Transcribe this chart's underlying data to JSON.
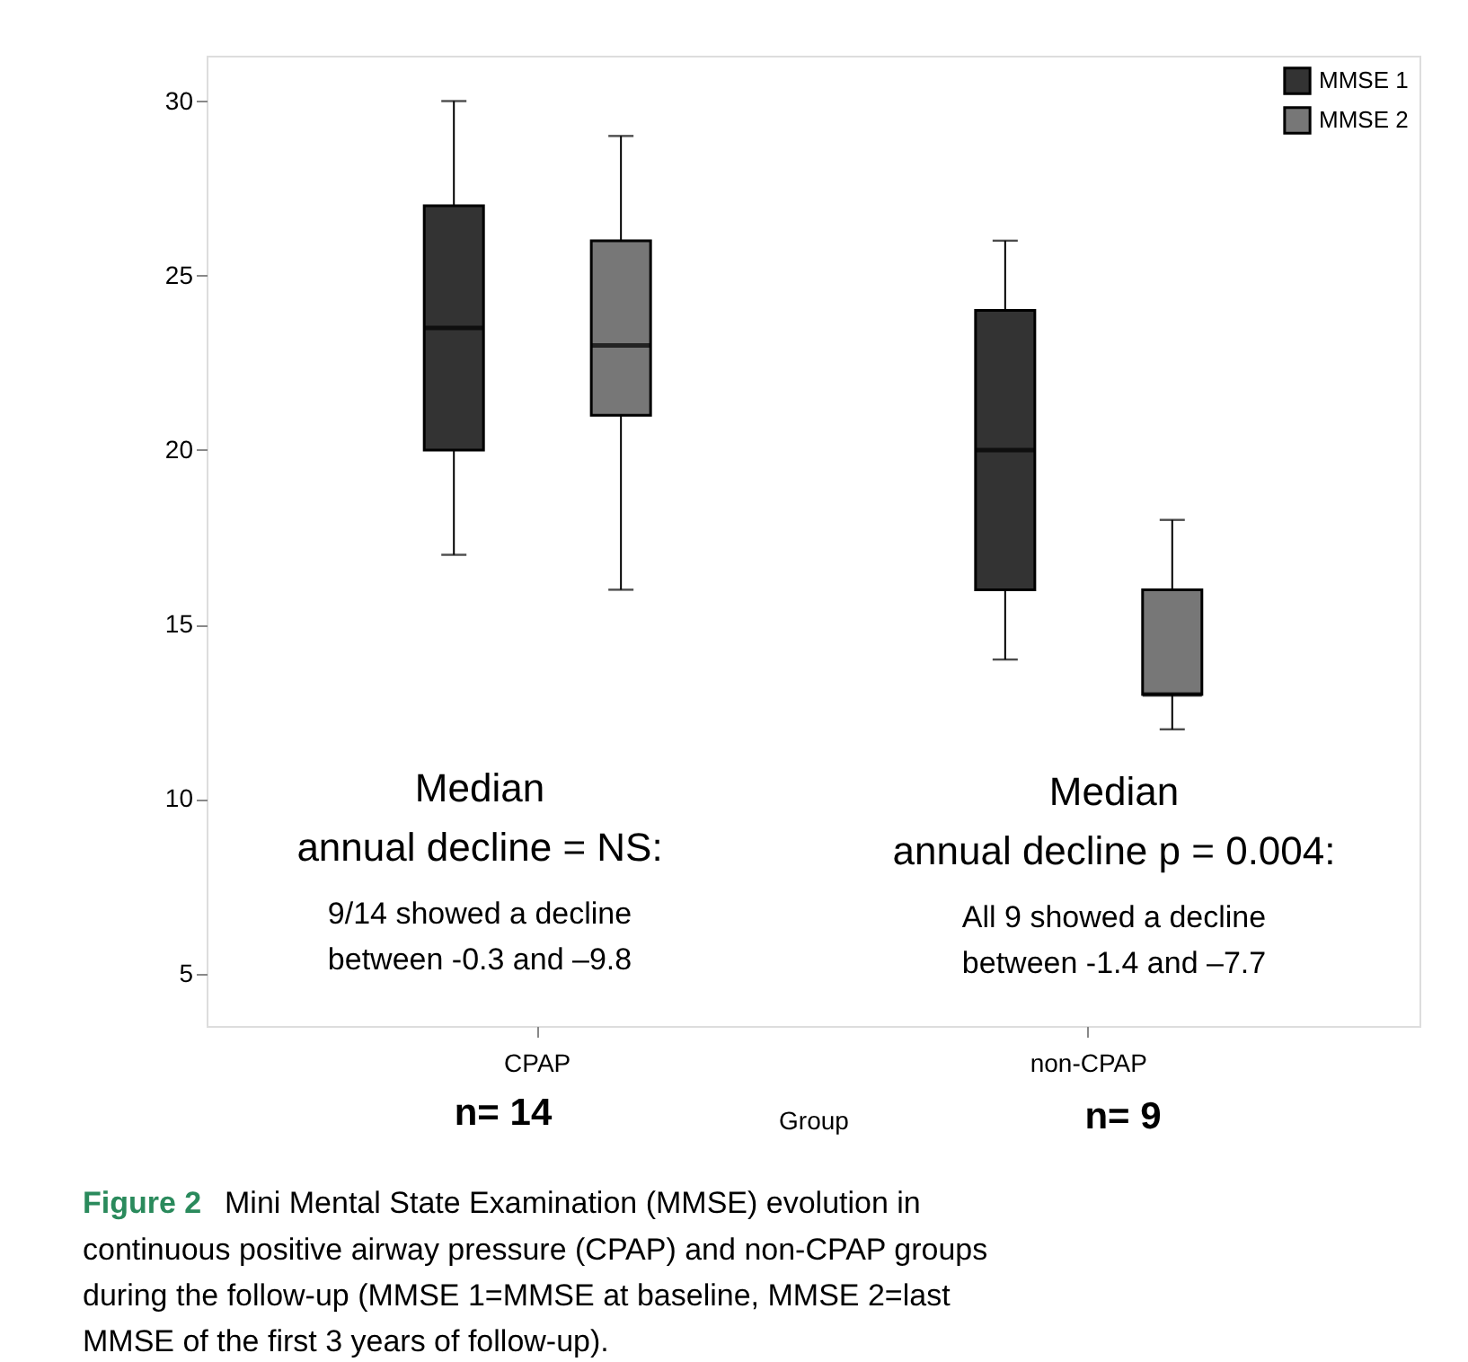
{
  "chart_data": {
    "type": "box",
    "categories": [
      "CPAP",
      "non-CPAP"
    ],
    "xlabel": "Group",
    "series": [
      {
        "name": "MMSE 1",
        "color": "#333333",
        "boxes": [
          {
            "low": 17,
            "q1": 20,
            "median": 23.5,
            "q3": 27,
            "high": 30
          },
          {
            "low": 14,
            "q1": 16,
            "median": 20,
            "q3": 24,
            "high": 26
          }
        ]
      },
      {
        "name": "MMSE 2",
        "color": "#777777",
        "boxes": [
          {
            "low": 16,
            "q1": 21,
            "median": 23,
            "q3": 26,
            "high": 29
          },
          {
            "low": 12,
            "q1": 13,
            "median": 13,
            "q3": 16,
            "high": 18
          }
        ]
      }
    ],
    "ylim": [
      3.5,
      31.3
    ],
    "yticks": [
      5,
      10,
      15,
      20,
      25,
      30
    ],
    "grid": false,
    "legend": "top right",
    "annotations": [
      "Median\nannual decline = NS:",
      "9/14 showed a decline\nbetween -0.3 and –9.8",
      "Median\nannual decline p = 0.004:",
      "All 9 showed a decline\nbetween -1.4 and –7.7",
      "n= 14",
      "n= 9",
      "Figure 2",
      "Mini Mental State Examination (MMSE) evolution in",
      "continuous positive airway pressure (CPAP) and non-CPAP groups\nduring the follow-up (MMSE 1=MMSE at baseline, MMSE 2=last\nMMSE of the first 3 years of follow-up)."
    ]
  }
}
